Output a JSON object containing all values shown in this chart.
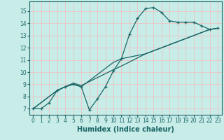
{
  "title": "",
  "xlabel": "Humidex (Indice chaleur)",
  "xlim": [
    -0.5,
    23.5
  ],
  "ylim": [
    6.5,
    15.8
  ],
  "yticks": [
    7,
    8,
    9,
    10,
    11,
    12,
    13,
    14,
    15
  ],
  "xticks": [
    0,
    1,
    2,
    3,
    4,
    5,
    6,
    7,
    8,
    9,
    10,
    11,
    12,
    13,
    14,
    15,
    16,
    17,
    18,
    19,
    20,
    21,
    22,
    23
  ],
  "bg_color": "#c8ece8",
  "grid_color": "#e8c8c8",
  "line_color": "#1a6666",
  "line1_x": [
    0,
    1,
    2,
    3,
    4,
    5,
    6,
    7,
    8,
    9,
    10,
    11,
    12,
    13,
    14,
    15,
    16,
    17,
    18,
    19,
    20,
    21,
    22,
    23
  ],
  "line1_y": [
    7.0,
    7.0,
    7.5,
    8.5,
    8.8,
    9.0,
    8.8,
    6.9,
    7.8,
    8.8,
    10.1,
    11.1,
    13.1,
    14.4,
    15.2,
    15.3,
    14.9,
    14.2,
    14.1,
    14.1,
    14.1,
    13.8,
    13.5,
    13.6
  ],
  "line2_x": [
    0,
    3,
    4,
    5,
    6,
    10,
    11,
    14,
    22,
    23
  ],
  "line2_y": [
    7.0,
    8.5,
    8.8,
    9.0,
    8.8,
    10.8,
    11.1,
    11.5,
    13.5,
    13.6
  ],
  "line3_x": [
    0,
    3,
    5,
    6,
    10,
    11,
    14,
    22,
    23
  ],
  "line3_y": [
    7.0,
    8.5,
    9.1,
    8.9,
    10.2,
    10.5,
    11.5,
    13.5,
    13.6
  ],
  "tick_fontsize": 5.5,
  "xlabel_fontsize": 7
}
